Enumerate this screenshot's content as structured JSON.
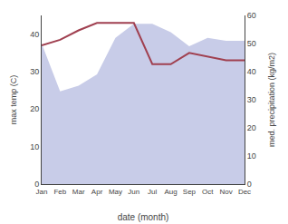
{
  "chart_data": {
    "type": "line",
    "xlabel": "date (month)",
    "ylabel": "max temp (C)",
    "y2label": "med. precipitation (kg/m2)",
    "categories": [
      "Jan",
      "Feb",
      "Mar",
      "Apr",
      "May",
      "Jun",
      "Jul",
      "Aug",
      "Sep",
      "Oct",
      "Nov",
      "Dec"
    ],
    "series": [
      {
        "type": "area",
        "axis": "y2",
        "color": "#c8cce8",
        "values": [
          50,
          33,
          35,
          39,
          52,
          57,
          57,
          54,
          49,
          52,
          51,
          51
        ]
      },
      {
        "type": "line",
        "color": "#a04050",
        "values": [
          37,
          38.5,
          41,
          43,
          43,
          43,
          32,
          32,
          35,
          34,
          33,
          33
        ]
      }
    ],
    "ylim": [
      0,
      45
    ],
    "yticks": [
      0,
      10,
      20,
      30,
      40
    ],
    "y2lim": [
      0,
      60
    ],
    "y2ticks": [
      0,
      10,
      20,
      30,
      40,
      50,
      60
    ],
    "grid": false
  }
}
